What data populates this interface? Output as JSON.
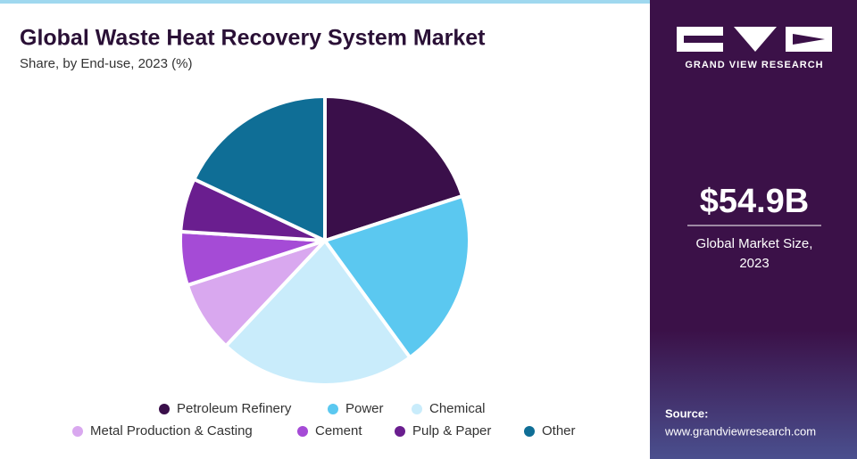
{
  "chart_data": {
    "type": "pie",
    "title": "Global Waste Heat Recovery System Market",
    "subtitle": "Share, by End-use, 2023 (%)",
    "categories": [
      "Petroleum Refinery",
      "Power",
      "Chemical",
      "Metal Production & Casting",
      "Cement",
      "Pulp & Paper",
      "Other"
    ],
    "values": [
      20,
      20,
      22,
      8,
      6,
      6,
      18
    ],
    "colors": [
      "#3a0f4a",
      "#5bc8f0",
      "#c9ecfb",
      "#d9a8ef",
      "#a54bd6",
      "#6a1e8f",
      "#0f6e96"
    ]
  },
  "sidebar": {
    "brand": "GRAND VIEW RESEARCH",
    "market_size": "$54.9B",
    "market_size_label": [
      "Global Market Size,",
      "2023"
    ],
    "source_label": "Source:",
    "source_url": "www.grandviewresearch.com"
  }
}
